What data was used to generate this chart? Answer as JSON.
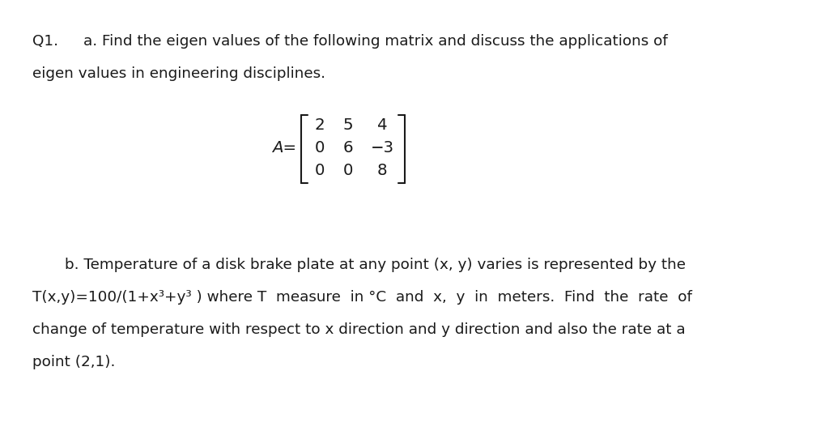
{
  "bg_color": "#ffffff",
  "text_color": "#1a1a1a",
  "font_size": 13.2,
  "line1a": "Q1.",
  "line1b": "a. Find the eigen values of the following matrix and discuss the applications of",
  "line2": "eigen values in engineering disciplines.",
  "matrix_label": "A=",
  "matrix_rows": [
    [
      "2",
      "5",
      "4"
    ],
    [
      "0",
      "6",
      "−3"
    ],
    [
      "0",
      "0",
      "8"
    ]
  ],
  "line_b1": "b. Temperature of a disk brake plate at any point (x, y) varies is represented by the",
  "line_b2": "T(x,y)=100/(1+x³+y³ ) where T  measure  in °C  and  x,  y  in  meters.  Find  the  rate  of",
  "line_b3": "change of temperature with respect to x direction and y direction and also the rate at a",
  "line_b4": "point (2,1)."
}
